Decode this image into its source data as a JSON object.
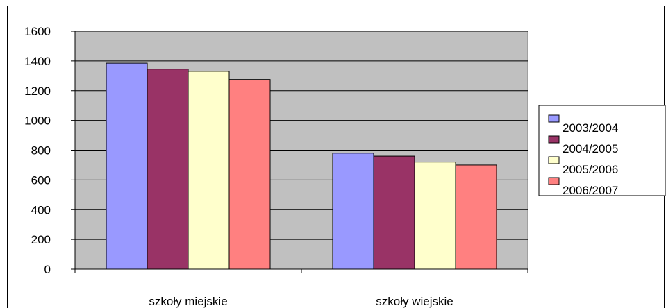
{
  "chart_data": {
    "type": "bar",
    "title": "",
    "xlabel": "",
    "ylabel": "",
    "ylim": [
      0,
      1600
    ],
    "yticks": [
      0,
      200,
      400,
      600,
      800,
      1000,
      1200,
      1400,
      1600
    ],
    "categories": [
      "szkoły miejskie",
      "szkoły wiejskie"
    ],
    "series": [
      {
        "name": "2003/2004",
        "values": [
          1385,
          780
        ],
        "color": "#9999ff"
      },
      {
        "name": "2004/2005",
        "values": [
          1345,
          760
        ],
        "color": "#993366"
      },
      {
        "name": "2005/2006",
        "values": [
          1330,
          720
        ],
        "color": "#ffffcc"
      },
      {
        "name": "2006/2007",
        "values": [
          1275,
          700
        ],
        "color": "#ff8080"
      }
    ],
    "plot_background": "#c0c0c0",
    "grid": true,
    "legend_position": "right"
  }
}
